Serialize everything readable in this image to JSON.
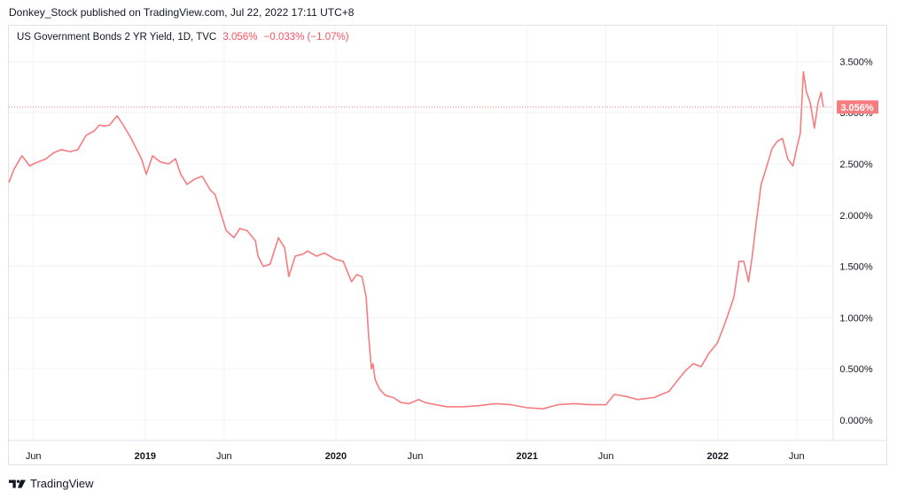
{
  "header": {
    "text": "Donkey_Stock published on TradingView.com, Jul 22, 2022 17:11 UTC+8"
  },
  "legend": {
    "name": "US Government Bonds 2 YR Yield, 1D, TVC",
    "last": "3.056%",
    "change": "−0.033% (−1.07%)"
  },
  "colors": {
    "line": "#f77c80",
    "price_label": "#f77c80",
    "grid": "#f0f3fa"
  },
  "footer": {
    "brand": "TradingView",
    "logo_icon": "tradingview-logo-icon"
  },
  "chart_data": {
    "type": "line",
    "title": "",
    "xlabel": "",
    "ylabel": "",
    "ylim": [
      -0.2,
      3.85
    ],
    "xlim": [
      "2018-04-15",
      "2022-08-10"
    ],
    "y_ticks": [
      {
        "value": 3.5,
        "label": "3.500%"
      },
      {
        "value": 3.0,
        "label": "3.000%"
      },
      {
        "value": 2.5,
        "label": "2.500%"
      },
      {
        "value": 2.0,
        "label": "2.000%"
      },
      {
        "value": 1.5,
        "label": "1.500%"
      },
      {
        "value": 1.0,
        "label": "1.000%"
      },
      {
        "value": 0.5,
        "label": "0.500%"
      },
      {
        "value": 0.0,
        "label": "0.000%"
      }
    ],
    "x_ticks": [
      {
        "date": "2018-06-01",
        "label": "Jun",
        "bold": false
      },
      {
        "date": "2019-01-01",
        "label": "2019",
        "bold": true
      },
      {
        "date": "2019-06-01",
        "label": "Jun",
        "bold": false
      },
      {
        "date": "2020-01-01",
        "label": "2020",
        "bold": true
      },
      {
        "date": "2020-06-01",
        "label": "Jun",
        "bold": false
      },
      {
        "date": "2021-01-01",
        "label": "2021",
        "bold": true
      },
      {
        "date": "2021-06-01",
        "label": "Jun",
        "bold": false
      },
      {
        "date": "2022-01-01",
        "label": "2022",
        "bold": true
      },
      {
        "date": "2022-06-01",
        "label": "Jun",
        "bold": false
      }
    ],
    "last_value": 3.056,
    "last_label": "3.056%",
    "series": [
      {
        "x": [
          "2018-04-15",
          "2018-04-25",
          "2018-05-10",
          "2018-05-25",
          "2018-06-01",
          "2018-06-10",
          "2018-06-25",
          "2018-07-10",
          "2018-07-25",
          "2018-08-10",
          "2018-08-25",
          "2018-09-10",
          "2018-09-25",
          "2018-10-05",
          "2018-10-15",
          "2018-10-25",
          "2018-11-08",
          "2018-11-20",
          "2018-12-05",
          "2018-12-15",
          "2018-12-25",
          "2019-01-03",
          "2019-01-15",
          "2019-01-30",
          "2019-02-15",
          "2019-02-28",
          "2019-03-10",
          "2019-03-22",
          "2019-04-05",
          "2019-04-20",
          "2019-05-05",
          "2019-05-15",
          "2019-05-30",
          "2019-06-05",
          "2019-06-20",
          "2019-07-01",
          "2019-07-15",
          "2019-07-31",
          "2019-08-05",
          "2019-08-15",
          "2019-08-28",
          "2019-09-13",
          "2019-09-25",
          "2019-10-03",
          "2019-10-15",
          "2019-10-30",
          "2019-11-08",
          "2019-11-25",
          "2019-12-10",
          "2019-12-31",
          "2020-01-15",
          "2020-01-31",
          "2020-02-10",
          "2020-02-20",
          "2020-02-28",
          "2020-03-04",
          "2020-03-09",
          "2020-03-12",
          "2020-03-16",
          "2020-03-20",
          "2020-03-25",
          "2020-04-05",
          "2020-04-20",
          "2020-05-05",
          "2020-05-20",
          "2020-06-08",
          "2020-06-20",
          "2020-07-10",
          "2020-08-01",
          "2020-09-01",
          "2020-10-01",
          "2020-11-01",
          "2020-12-01",
          "2021-01-01",
          "2021-02-01",
          "2021-03-01",
          "2021-04-01",
          "2021-05-01",
          "2021-06-01",
          "2021-06-17",
          "2021-07-10",
          "2021-08-01",
          "2021-09-01",
          "2021-09-30",
          "2021-10-15",
          "2021-10-31",
          "2021-11-15",
          "2021-11-30",
          "2021-12-15",
          "2021-12-31",
          "2022-01-10",
          "2022-01-20",
          "2022-02-01",
          "2022-02-11",
          "2022-02-20",
          "2022-03-01",
          "2022-03-08",
          "2022-03-15",
          "2022-03-25",
          "2022-04-05",
          "2022-04-15",
          "2022-04-25",
          "2022-05-05",
          "2022-05-15",
          "2022-05-25",
          "2022-06-01",
          "2022-06-08",
          "2022-06-14",
          "2022-06-20",
          "2022-06-27",
          "2022-07-05",
          "2022-07-12",
          "2022-07-18",
          "2022-07-22"
        ],
        "y": [
          2.32,
          2.45,
          2.58,
          2.48,
          2.5,
          2.52,
          2.55,
          2.61,
          2.64,
          2.62,
          2.64,
          2.78,
          2.82,
          2.88,
          2.87,
          2.88,
          2.97,
          2.88,
          2.75,
          2.65,
          2.55,
          2.4,
          2.58,
          2.52,
          2.5,
          2.55,
          2.4,
          2.3,
          2.35,
          2.38,
          2.25,
          2.2,
          1.95,
          1.85,
          1.78,
          1.87,
          1.85,
          1.75,
          1.6,
          1.5,
          1.52,
          1.78,
          1.68,
          1.4,
          1.6,
          1.62,
          1.65,
          1.6,
          1.63,
          1.57,
          1.55,
          1.35,
          1.42,
          1.4,
          1.2,
          0.8,
          0.5,
          0.55,
          0.4,
          0.35,
          0.3,
          0.24,
          0.22,
          0.17,
          0.16,
          0.2,
          0.17,
          0.15,
          0.13,
          0.13,
          0.14,
          0.16,
          0.15,
          0.12,
          0.11,
          0.15,
          0.16,
          0.15,
          0.15,
          0.25,
          0.23,
          0.2,
          0.22,
          0.28,
          0.38,
          0.48,
          0.55,
          0.52,
          0.65,
          0.75,
          0.88,
          1.02,
          1.2,
          1.55,
          1.55,
          1.35,
          1.6,
          1.9,
          2.3,
          2.48,
          2.65,
          2.72,
          2.75,
          2.55,
          2.48,
          2.65,
          2.8,
          3.4,
          3.2,
          3.1,
          2.85,
          3.1,
          3.2,
          3.056
        ]
      }
    ]
  }
}
